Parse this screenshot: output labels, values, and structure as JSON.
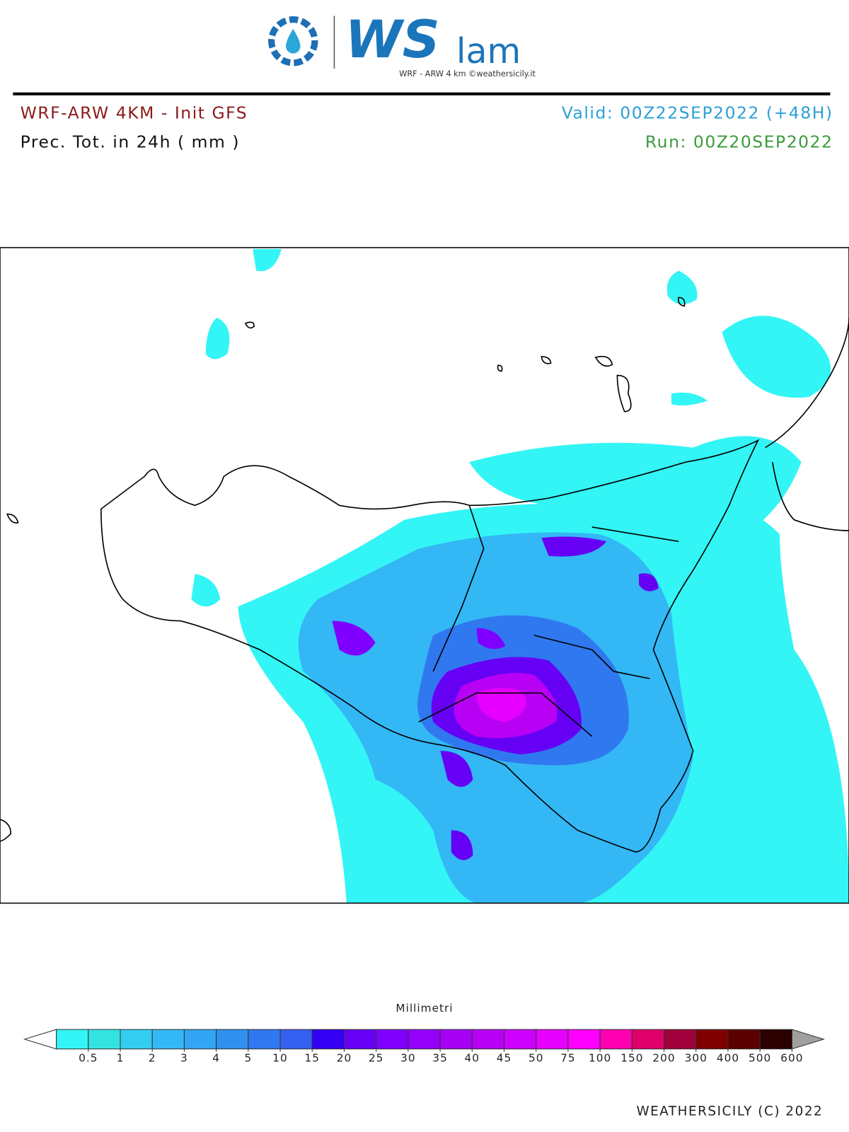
{
  "logo": {
    "brand": "WS",
    "suffix": "lam",
    "tagline": "WRF - ARW 4 km ©weathersicily.it"
  },
  "header": {
    "model": "WRF-ARW 4KM - Init GFS",
    "field": "Prec. Tot. in 24h ( mm )",
    "valid": "Valid: 00Z22SEP2022 (+48H)",
    "run": "Run: 00Z20SEP2022"
  },
  "colorbar": {
    "title": "Millimetri",
    "ticks": [
      0.5,
      1,
      2,
      3,
      4,
      5,
      10,
      15,
      20,
      25,
      30,
      35,
      40,
      45,
      50,
      75,
      100,
      150,
      200,
      300,
      400,
      500,
      600
    ],
    "colors": [
      "#33f5f5",
      "#33e3e0",
      "#33cdf2",
      "#33b8f5",
      "#33a5f5",
      "#3090f0",
      "#3078f0",
      "#3560f0",
      "#3300f5",
      "#6600f5",
      "#7f00ff",
      "#9400fa",
      "#a600f5",
      "#b800f5",
      "#cc00ff",
      "#e600ff",
      "#ff00ff",
      "#ff00b0",
      "#e0006a",
      "#a0003c",
      "#800000",
      "#5a0000",
      "#2a0000"
    ],
    "under_color": "#ffffff",
    "over_color": "#a0a0a0"
  },
  "footer": {
    "credit": "WEATHERSICILY (C) 2022"
  }
}
